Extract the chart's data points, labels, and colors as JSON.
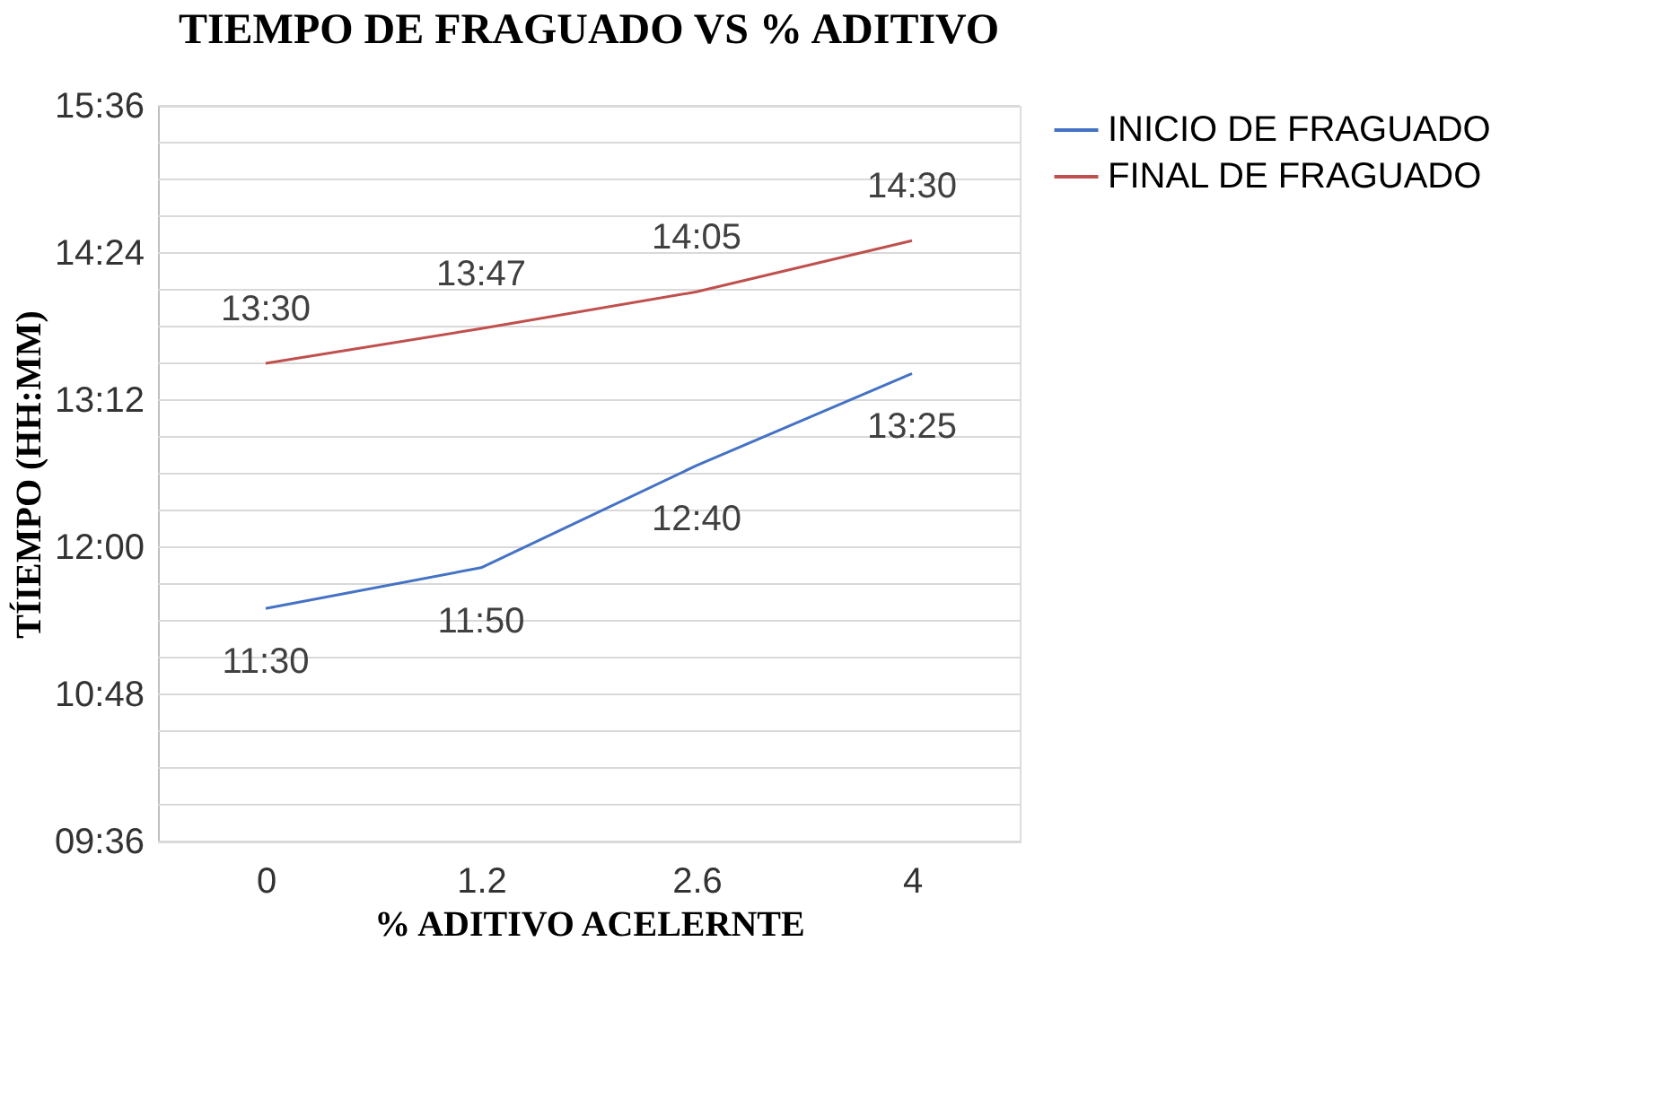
{
  "chart_data": {
    "type": "line",
    "title": "TIEMPO DE FRAGUADO VS % ADITIVO",
    "xlabel": "% ADITIVO ACELERNTE",
    "ylabel": "TÍIEMPO (HH:MM)",
    "categories": [
      "0",
      "1.2",
      "2.6",
      "4"
    ],
    "series": [
      {
        "name": "INICIO DE FRAGUADO",
        "color": "#4472c4",
        "values": [
          11.5,
          11.8333,
          12.6667,
          13.4167
        ],
        "value_labels": [
          "11:30",
          "11:50",
          "12:40",
          "13:25"
        ]
      },
      {
        "name": "FINAL DE FRAGUADO",
        "color": "#c0504d",
        "values": [
          13.5,
          13.7833,
          14.0833,
          14.5
        ],
        "value_labels": [
          "13:30",
          "13:47",
          "14:05",
          "14:30"
        ]
      }
    ],
    "ylim": [
      9.6,
      15.6
    ],
    "yticks": [
      {
        "value": 9.6,
        "label": "09:36"
      },
      {
        "value": 9.9,
        "label": null
      },
      {
        "value": 10.2,
        "label": null
      },
      {
        "value": 10.5,
        "label": null
      },
      {
        "value": 10.8,
        "label": "10:48"
      },
      {
        "value": 11.1,
        "label": null
      },
      {
        "value": 11.4,
        "label": null
      },
      {
        "value": 11.7,
        "label": null
      },
      {
        "value": 12.0,
        "label": "12:00"
      },
      {
        "value": 12.3,
        "label": null
      },
      {
        "value": 12.6,
        "label": null
      },
      {
        "value": 12.9,
        "label": null
      },
      {
        "value": 13.2,
        "label": "13:12"
      },
      {
        "value": 13.5,
        "label": null
      },
      {
        "value": 13.8,
        "label": null
      },
      {
        "value": 14.1,
        "label": null
      },
      {
        "value": 14.4,
        "label": "14:24"
      },
      {
        "value": 14.7,
        "label": null
      },
      {
        "value": 15.0,
        "label": null
      },
      {
        "value": 15.3,
        "label": null
      },
      {
        "value": 15.6,
        "label": "15:36"
      }
    ],
    "grid": "y",
    "legend": "right",
    "marker": "none",
    "line_style": "solid"
  }
}
